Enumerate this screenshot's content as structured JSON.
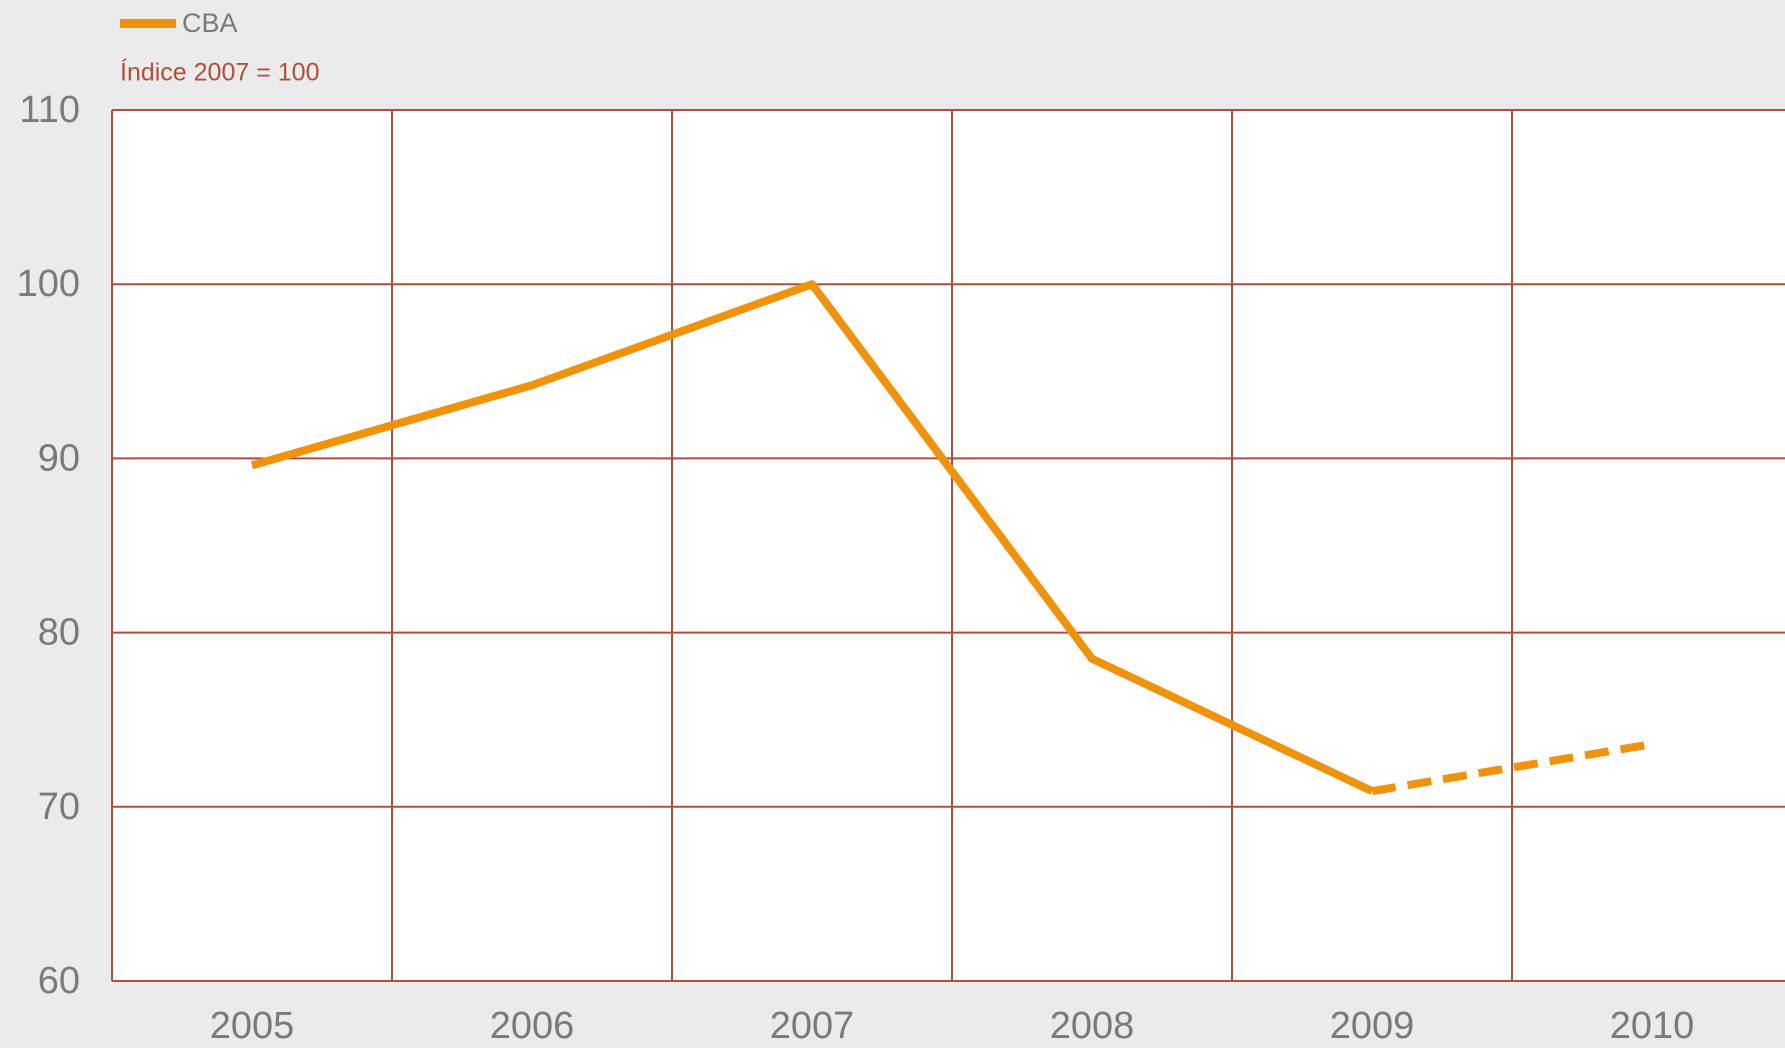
{
  "chart_data": {
    "type": "line",
    "subtitle": "Índice 2007 = 100",
    "categories": [
      "2005",
      "2006",
      "2007",
      "2008",
      "2009",
      "2010"
    ],
    "series": [
      {
        "name": "CBA",
        "color": "#f0920a",
        "values": [
          89.6,
          94.2,
          100,
          78.5,
          70.9,
          73.6
        ]
      }
    ],
    "dashed_from_index": 4,
    "ylim": [
      60,
      110
    ],
    "yticks": [
      60,
      70,
      80,
      90,
      100,
      110
    ],
    "grid": true,
    "grid_color": "#b0503c",
    "legend": "top-left"
  }
}
